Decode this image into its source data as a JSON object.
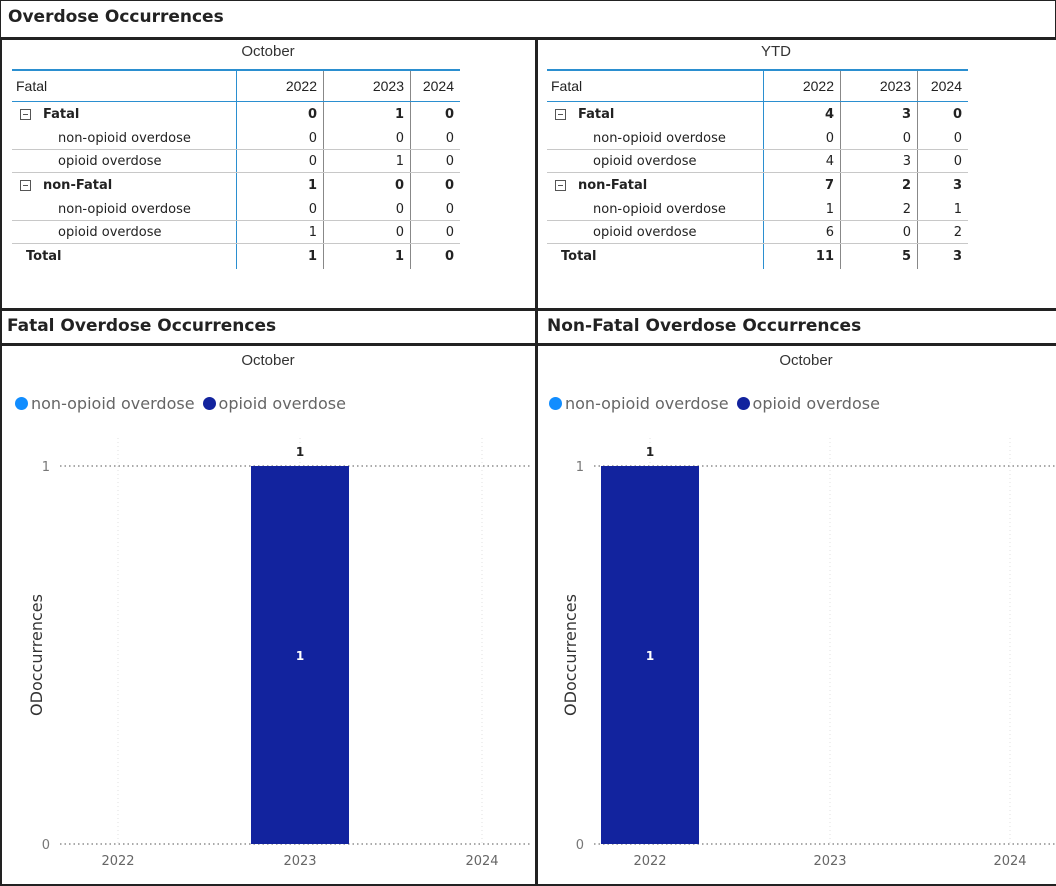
{
  "page": {
    "title": "Overdose Occurrences",
    "colors": {
      "non_opioid": "#118dff",
      "opioid": "#12239e",
      "table_accent": "#2b8fd0"
    }
  },
  "tables": {
    "row_header": "Fatal",
    "years": [
      "2022",
      "2023",
      "2024"
    ],
    "left": {
      "caption": "October",
      "groups": [
        {
          "label": "Fatal",
          "values": [
            "0",
            "1",
            "0"
          ],
          "rows": [
            {
              "label": "non-opioid overdose",
              "values": [
                "0",
                "0",
                "0"
              ]
            },
            {
              "label": "opioid overdose",
              "values": [
                "0",
                "1",
                "0"
              ]
            }
          ]
        },
        {
          "label": "non-Fatal",
          "values": [
            "1",
            "0",
            "0"
          ],
          "rows": [
            {
              "label": "non-opioid overdose",
              "values": [
                "0",
                "0",
                "0"
              ]
            },
            {
              "label": "opioid overdose",
              "values": [
                "1",
                "0",
                "0"
              ]
            }
          ]
        }
      ],
      "total": {
        "label": "Total",
        "values": [
          "1",
          "1",
          "0"
        ]
      }
    },
    "right": {
      "caption": "YTD",
      "groups": [
        {
          "label": "Fatal",
          "values": [
            "4",
            "3",
            "0"
          ],
          "rows": [
            {
              "label": "non-opioid overdose",
              "values": [
                "0",
                "0",
                "0"
              ]
            },
            {
              "label": "opioid overdose",
              "values": [
                "4",
                "3",
                "0"
              ]
            }
          ]
        },
        {
          "label": "non-Fatal",
          "values": [
            "7",
            "2",
            "3"
          ],
          "rows": [
            {
              "label": "non-opioid overdose",
              "values": [
                "1",
                "2",
                "1"
              ]
            },
            {
              "label": "opioid overdose",
              "values": [
                "6",
                "0",
                "2"
              ]
            }
          ]
        }
      ],
      "total": {
        "label": "Total",
        "values": [
          "11",
          "5",
          "3"
        ]
      }
    }
  },
  "charts": {
    "fatal": {
      "section_title": "Fatal Overdose Occurrences"
    },
    "nonfatal": {
      "section_title": "Non-Fatal Overdose Occurrences"
    }
  },
  "chart_data": [
    {
      "type": "bar",
      "title": "October",
      "ylabel": "ODoccurrences",
      "categories": [
        "2022",
        "2023",
        "2024"
      ],
      "series": [
        {
          "name": "non-opioid overdose",
          "values": [
            0,
            0,
            0
          ]
        },
        {
          "name": "opioid overdose",
          "values": [
            0,
            1,
            0
          ]
        }
      ],
      "totals": [
        0,
        1,
        0
      ],
      "ylim": [
        0,
        1
      ],
      "yticks": [
        0,
        1
      ],
      "grid": true,
      "legend": "top-left"
    },
    {
      "type": "bar",
      "title": "October",
      "ylabel": "ODoccurrences",
      "categories": [
        "2022",
        "2023",
        "2024"
      ],
      "series": [
        {
          "name": "non-opioid overdose",
          "values": [
            0,
            0,
            0
          ]
        },
        {
          "name": "opioid overdose",
          "values": [
            1,
            0,
            0
          ]
        }
      ],
      "totals": [
        1,
        0,
        0
      ],
      "ylim": [
        0,
        1
      ],
      "yticks": [
        0,
        1
      ],
      "grid": true,
      "legend": "top-left"
    }
  ]
}
